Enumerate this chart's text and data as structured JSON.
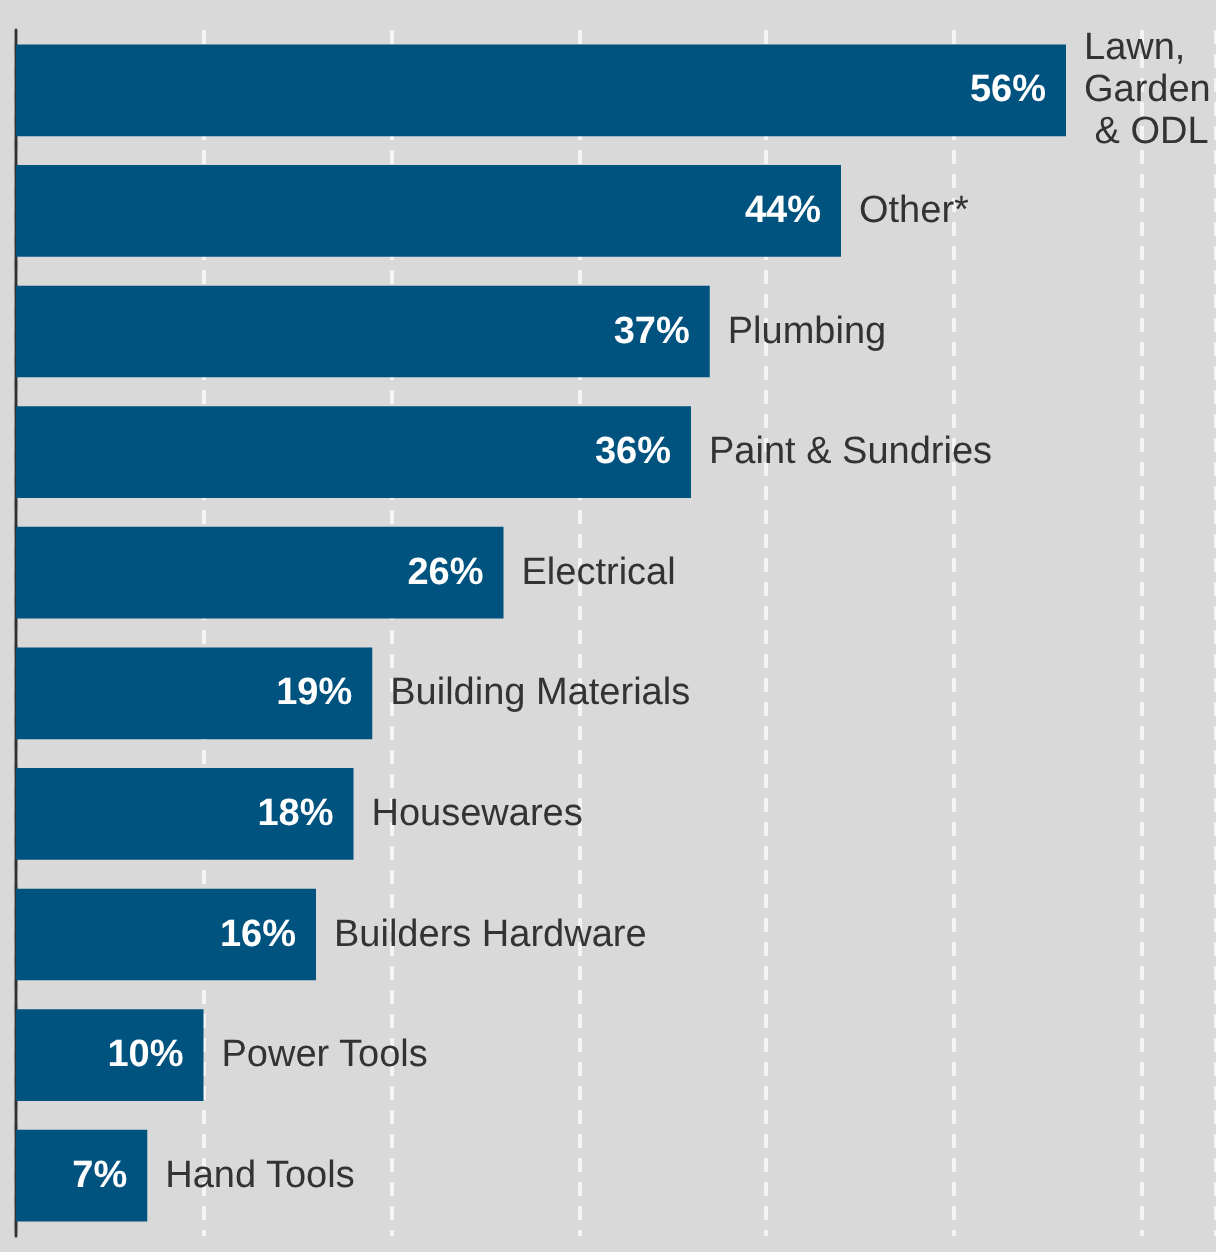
{
  "chart_data": {
    "type": "bar",
    "orientation": "horizontal",
    "categories": [
      "Lawn, Garden & ODL",
      "Other*",
      "Plumbing",
      "Paint & Sundries",
      "Electrical",
      "Building Materials",
      "Housewares",
      "Builders Hardware",
      "Power Tools",
      "Hand Tools"
    ],
    "values": [
      56,
      44,
      37,
      36,
      26,
      19,
      18,
      16,
      10,
      7
    ],
    "value_labels": [
      "56%",
      "44%",
      "37%",
      "36%",
      "26%",
      "19%",
      "18%",
      "16%",
      "10%",
      "7%"
    ],
    "color": "#00527f",
    "xlim": [
      0,
      64
    ],
    "xticks": [
      {
        "value": 10,
        "label": null
      },
      {
        "value": 20,
        "label": null
      },
      {
        "value": 30,
        "label": null
      },
      {
        "value": 40,
        "label": null
      },
      {
        "value": 50,
        "label": null
      },
      {
        "value": 60,
        "label": null
      }
    ],
    "grid": "x"
  }
}
